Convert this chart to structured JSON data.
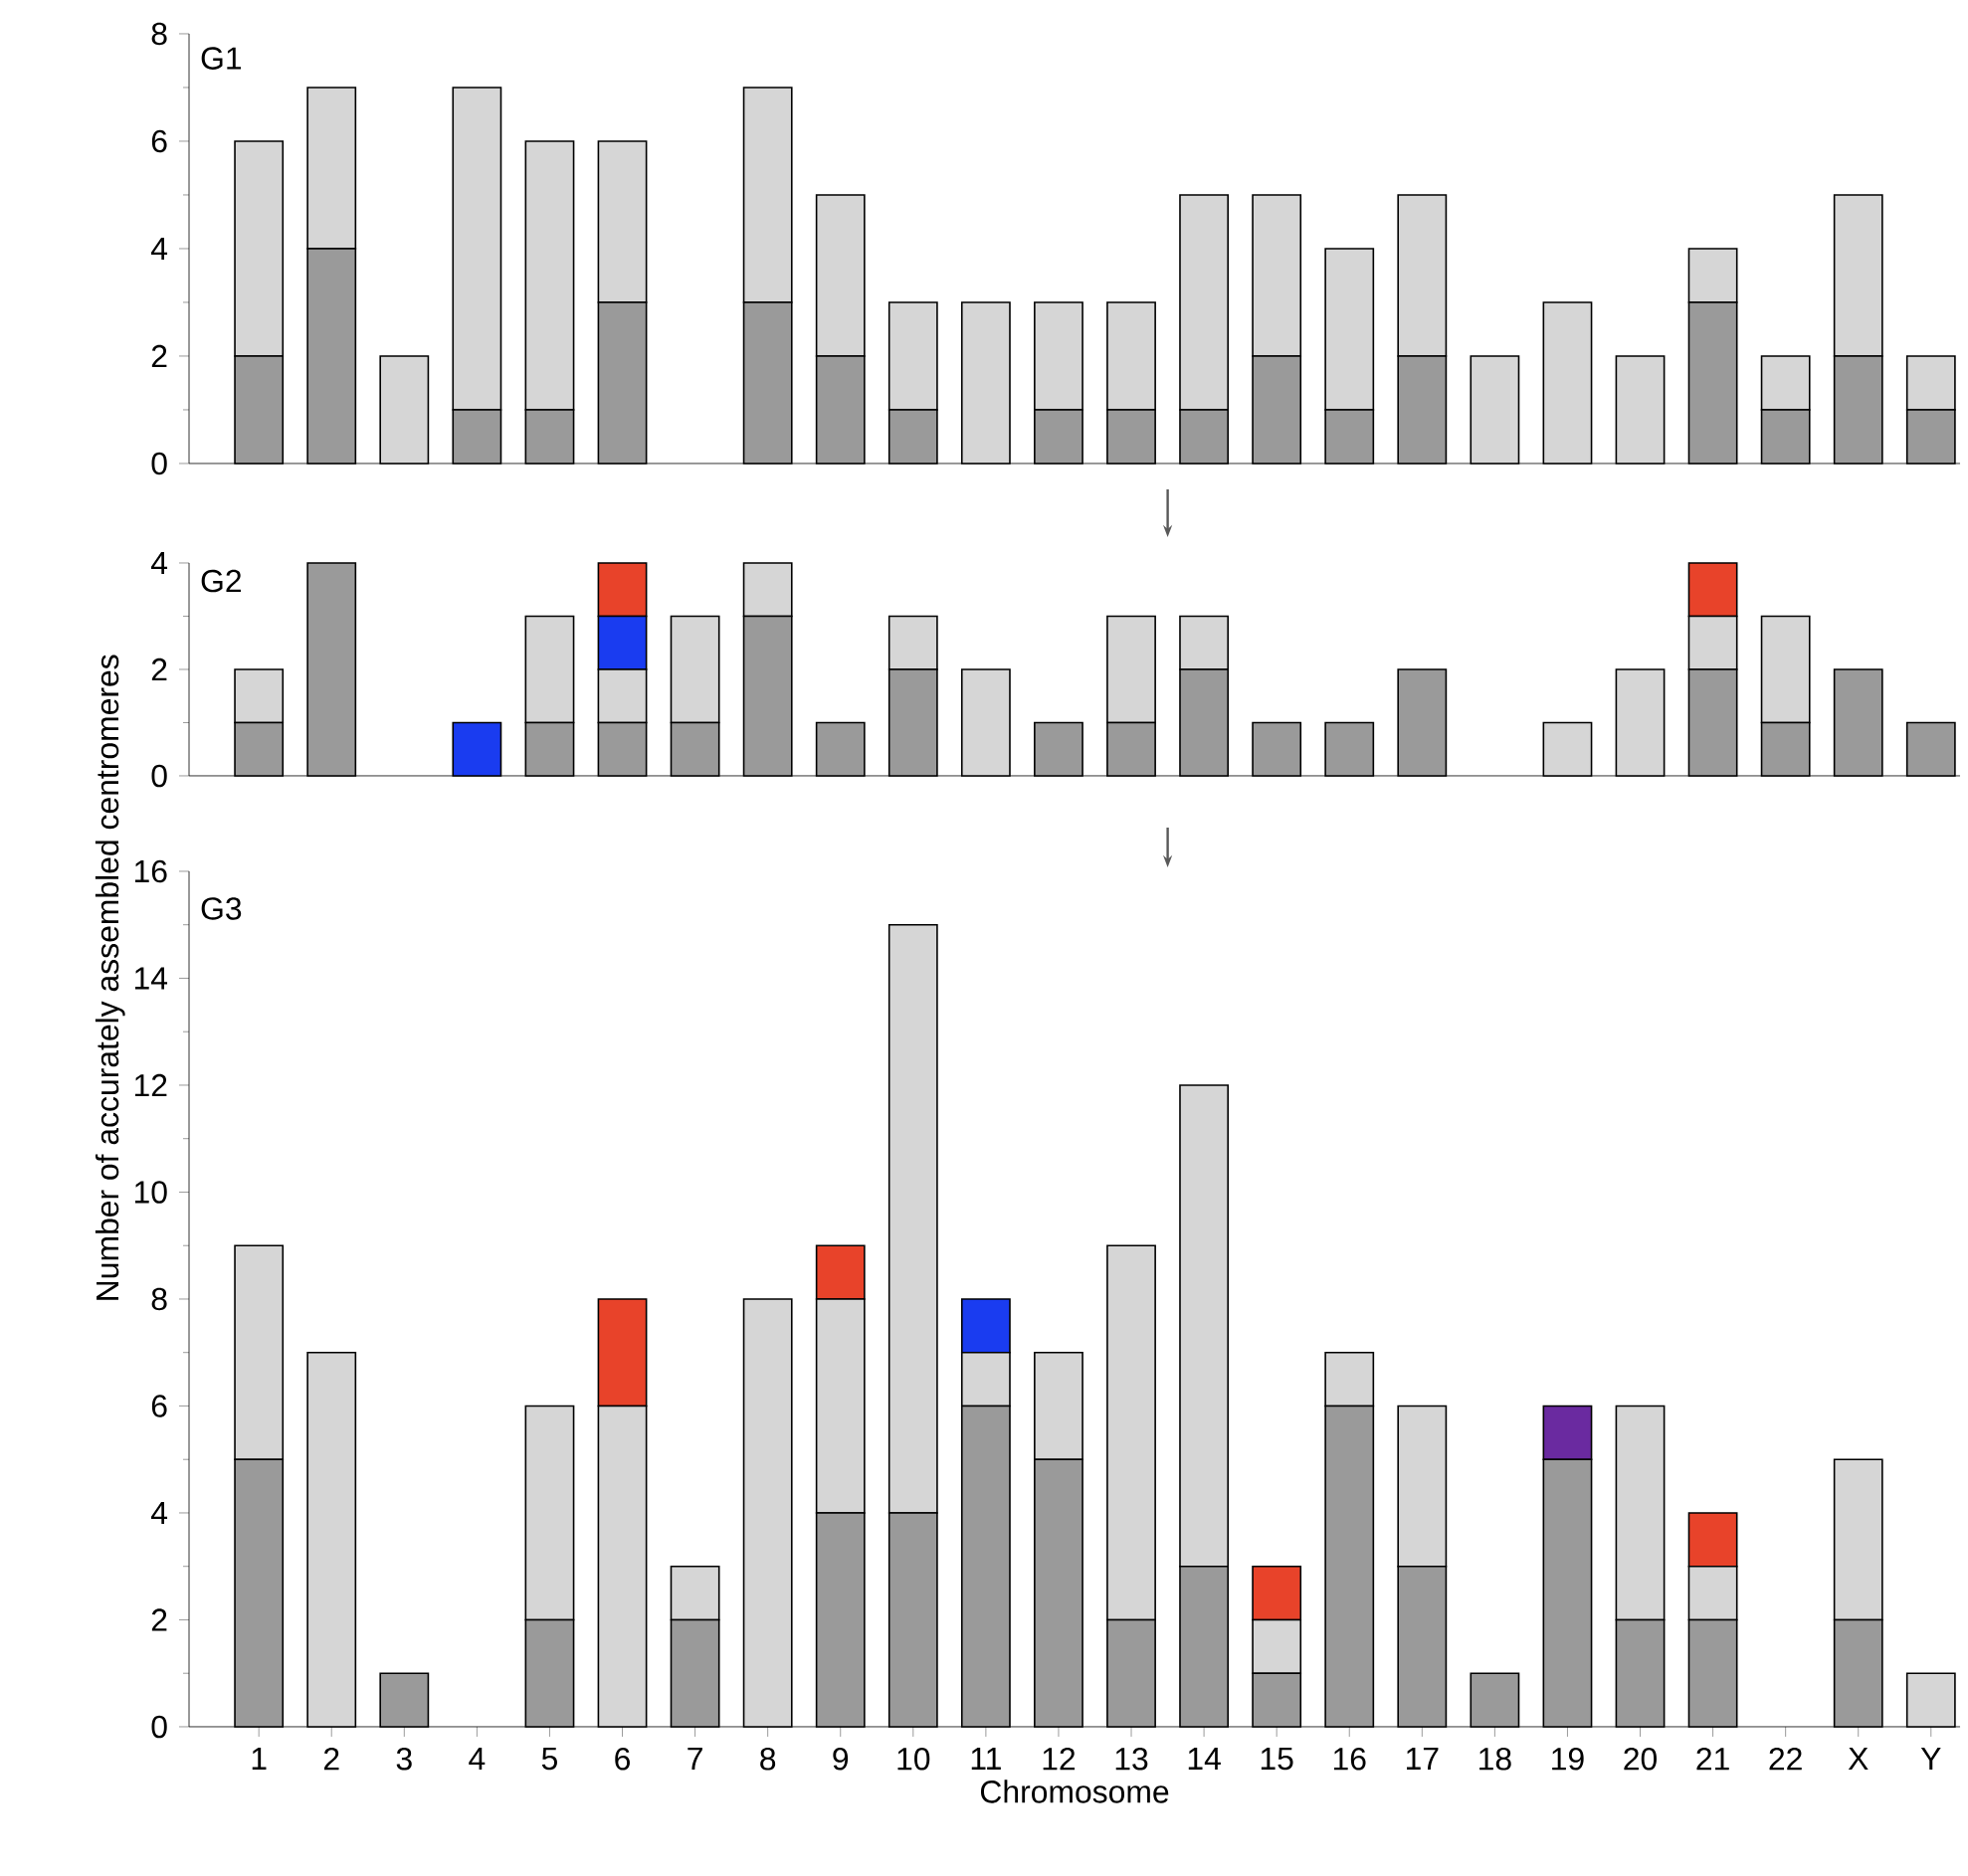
{
  "chart_data": [
    {
      "type": "bar",
      "title": "G1",
      "stacked": true,
      "tick_labels": "y",
      "categories": [
        null,
        null,
        null,
        null,
        null,
        null,
        null,
        null,
        null,
        null,
        null,
        null,
        null,
        null,
        null,
        null,
        null,
        null,
        null,
        null,
        null,
        null,
        null,
        null
      ],
      "ylim": [
        0,
        8
      ],
      "yticks": [
        0,
        2,
        4,
        6,
        8
      ],
      "series": [
        {
          "color": "#9a9a9a",
          "values": [
            2,
            4,
            null,
            1,
            1,
            3,
            null,
            3,
            2,
            1,
            null,
            1,
            1,
            1,
            2,
            1,
            2,
            null,
            null,
            null,
            3,
            1,
            2,
            1
          ]
        },
        {
          "color": "#d6d6d6",
          "values": [
            4,
            3,
            2,
            6,
            5,
            3,
            null,
            4,
            3,
            2,
            3,
            2,
            2,
            4,
            3,
            3,
            3,
            2,
            3,
            2,
            1,
            1,
            3,
            1
          ]
        }
      ]
    },
    {
      "type": "bar",
      "title": "G2",
      "stacked": true,
      "tick_labels": "y",
      "ylabel": "Number of accurately assembled centromeres",
      "categories": [
        null,
        null,
        null,
        null,
        null,
        null,
        null,
        null,
        null,
        null,
        null,
        null,
        null,
        null,
        null,
        null,
        null,
        null,
        null,
        null,
        null,
        null,
        null,
        null
      ],
      "ylim": [
        0,
        4
      ],
      "yticks": [
        0,
        2,
        4
      ],
      "series": [
        {
          "color": "#9a9a9a",
          "values": [
            1,
            4,
            null,
            null,
            1,
            1,
            1,
            3,
            1,
            2,
            null,
            1,
            1,
            2,
            1,
            1,
            2,
            null,
            null,
            null,
            2,
            1,
            2,
            1
          ]
        },
        {
          "color": "#d6d6d6",
          "values": [
            1,
            null,
            null,
            null,
            2,
            1,
            2,
            1,
            null,
            1,
            2,
            null,
            2,
            1,
            null,
            null,
            null,
            null,
            1,
            2,
            1,
            2,
            null,
            null
          ]
        },
        {
          "color": "#1a3cf0",
          "values": [
            null,
            null,
            null,
            1,
            null,
            1,
            null,
            null,
            null,
            null,
            null,
            null,
            null,
            null,
            null,
            null,
            null,
            null,
            null,
            null,
            null,
            null,
            null,
            null
          ]
        },
        {
          "color": "#e8432a",
          "values": [
            null,
            null,
            null,
            null,
            null,
            1,
            null,
            null,
            null,
            null,
            null,
            null,
            null,
            null,
            null,
            null,
            null,
            null,
            null,
            null,
            1,
            null,
            null,
            null
          ]
        }
      ]
    },
    {
      "type": "bar",
      "title": "G3",
      "stacked": true,
      "xlabel": "Chromosome",
      "categories": [
        "1",
        "2",
        "3",
        "4",
        "5",
        "6",
        "7",
        "8",
        "9",
        "10",
        "11",
        "12",
        "13",
        "14",
        "15",
        "16",
        "17",
        "18",
        "19",
        "20",
        "21",
        "22",
        "X",
        "Y"
      ],
      "ylim": [
        0,
        16
      ],
      "yticks": [
        0,
        2,
        4,
        6,
        8,
        10,
        12,
        14,
        16
      ],
      "series": [
        {
          "color": "#9a9a9a",
          "values": [
            5,
            null,
            1,
            null,
            2,
            null,
            2,
            null,
            4,
            4,
            6,
            5,
            2,
            3,
            1,
            6,
            3,
            1,
            5,
            2,
            2,
            null,
            2,
            null
          ]
        },
        {
          "color": "#d6d6d6",
          "values": [
            4,
            7,
            null,
            null,
            4,
            6,
            1,
            8,
            4,
            11,
            1,
            2,
            7,
            9,
            1,
            1,
            3,
            null,
            null,
            4,
            1,
            null,
            3,
            1
          ]
        },
        {
          "color": "#1a3cf0",
          "values": [
            null,
            null,
            null,
            null,
            null,
            null,
            null,
            null,
            null,
            null,
            1,
            null,
            null,
            null,
            null,
            null,
            null,
            null,
            null,
            null,
            null,
            null,
            null,
            null
          ]
        },
        {
          "color": "#e8432a",
          "values": [
            null,
            null,
            null,
            null,
            null,
            2,
            null,
            null,
            1,
            null,
            null,
            null,
            null,
            null,
            1,
            null,
            null,
            null,
            null,
            null,
            1,
            null,
            null,
            null
          ]
        },
        {
          "color": "#6a2aa0",
          "values": [
            null,
            null,
            null,
            null,
            null,
            null,
            null,
            null,
            null,
            null,
            null,
            null,
            null,
            null,
            null,
            null,
            null,
            null,
            1,
            null,
            null,
            null,
            null,
            null
          ]
        }
      ]
    }
  ]
}
